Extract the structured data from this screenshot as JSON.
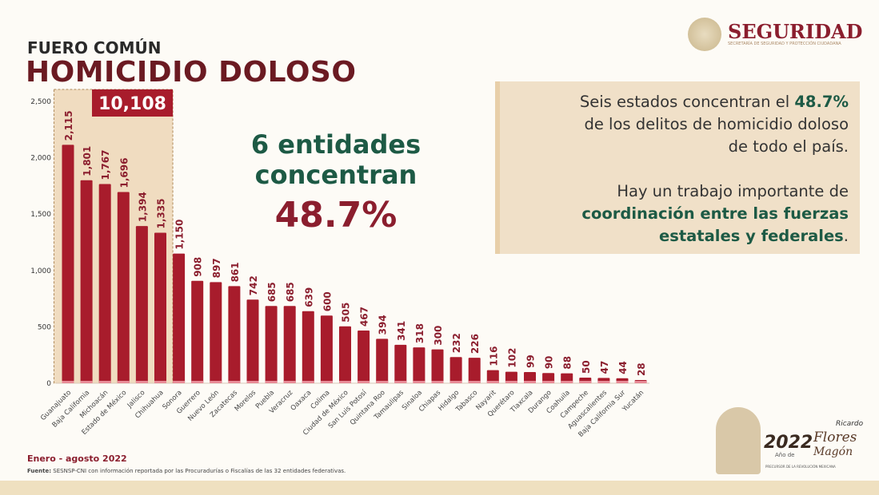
{
  "header": {
    "kicker": "FUERO COMÚN",
    "title": "HOMICIDIO DOLOSO"
  },
  "logo": {
    "name": "SEGURIDAD",
    "subtitle": "SECRETARÍA DE SEGURIDAD Y PROTECCIÓN CIUDADANA"
  },
  "highlight": {
    "total": "10,108",
    "line1": "6 entidades",
    "line2": "concentran",
    "percent": "48.7%"
  },
  "callout": {
    "p1a": "Seis estados concentran el ",
    "p1b": "48.7%",
    "p1c": "de los delitos de homicidio doloso",
    "p1d": "de todo el país.",
    "p2a": "Hay un trabajo importante de",
    "p2b": "coordinación entre las fuerzas",
    "p2c": "estatales y federales",
    "p2d": "."
  },
  "footer": {
    "period": "Enero - agosto 2022",
    "source_label": "Fuente:",
    "source": " SESNSP-CNI con información reportada por las Procuradurías o Fiscalías de las 32 entidades federativas.",
    "badge_year": "2022",
    "badge_sub": "Año de",
    "badge_name1": "Ricardo",
    "badge_name2": "Flores",
    "badge_name3": "Magón",
    "badge_tag": "PRECURSOR DE LA REVOLUCIÓN MEXICANA"
  },
  "chart_data": {
    "type": "bar",
    "categories": [
      "Guanajuato",
      "Baja California",
      "Michoacán",
      "Estado de México",
      "Jalisco",
      "Chihuahua",
      "Sonora",
      "Guerrero",
      "Nuevo León",
      "Zacatecas",
      "Morelos",
      "Puebla",
      "Veracruz",
      "Oaxaca",
      "Colima",
      "Ciudad de México",
      "San Luis Potosí",
      "Quintana Roo",
      "Tamaulipas",
      "Sinaloa",
      "Chiapas",
      "Hidalgo",
      "Tabasco",
      "Nayarit",
      "Querétaro",
      "Tlaxcala",
      "Durango",
      "Coahuila",
      "Campeche",
      "Aguascalientes",
      "Baja California Sur",
      "Yucatán"
    ],
    "values": [
      2115,
      1801,
      1767,
      1696,
      1394,
      1335,
      1150,
      908,
      897,
      861,
      742,
      685,
      685,
      639,
      600,
      505,
      467,
      394,
      341,
      318,
      300,
      232,
      226,
      116,
      102,
      99,
      90,
      88,
      50,
      47,
      44,
      28
    ],
    "data_labels": [
      "2,115",
      "1,801",
      "1,767",
      "1,696",
      "1,394",
      "1,335",
      "1,150",
      "908",
      "897",
      "861",
      "742",
      "685",
      "685",
      "639",
      "600",
      "505",
      "467",
      "394",
      "341",
      "318",
      "300",
      "232",
      "226",
      "116",
      "102",
      "99",
      "90",
      "88",
      "50",
      "47",
      "44",
      "28"
    ],
    "ylim": [
      0,
      2500
    ],
    "yticks": [
      "0",
      "500",
      "1,000",
      "1,500",
      "2,000",
      "2,500"
    ],
    "highlighted_count": 6,
    "grid": false,
    "colors": {
      "bar": "#a81c2c",
      "highlight_bg": "#f0dcc0",
      "badge": "#a81c2c"
    }
  }
}
